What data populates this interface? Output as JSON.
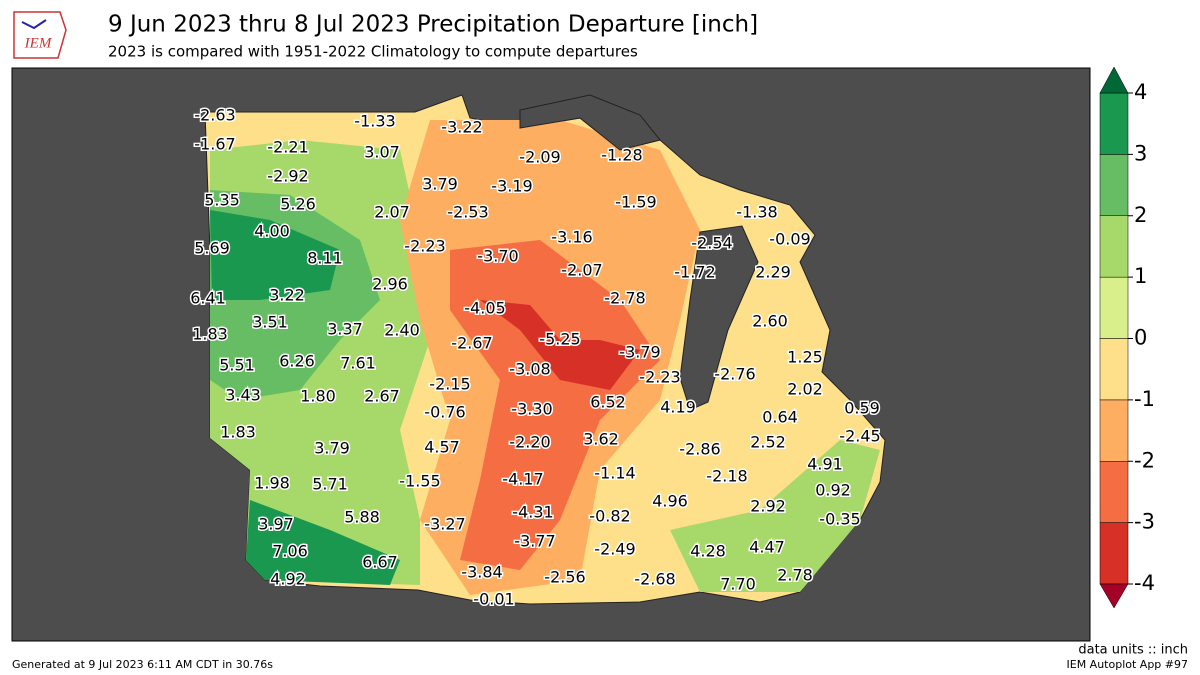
{
  "header": {
    "logo": "IEM",
    "title": "9 Jun 2023 thru 8 Jul 2023 Precipitation Departure [inch]",
    "subtitle": "2023 is compared with 1951-2022 Climatology to compute departures"
  },
  "map": {
    "station_labels": [
      "-2.63",
      "-1.33",
      "-3.22",
      "-1.67",
      "-2.21",
      "3.07",
      "-2.09",
      "-1.28",
      "-2.92",
      "3.79",
      "-3.19",
      "5.35",
      "5.26",
      "2.07",
      "-2.53",
      "-1.59",
      "-1.38",
      "4.00",
      "-3.16",
      "-2.54",
      "-0.09",
      "5.69",
      "-2.23",
      "8.11",
      "-3.70",
      "-2.07",
      "-1.72",
      "2.29",
      "2.96",
      "6.41",
      "3.22",
      "-2.78",
      "-4.05",
      "2.60",
      "3.51",
      "3.37",
      "2.40",
      "1.83",
      "-2.67",
      "-5.25",
      "-3.79",
      "1.25",
      "5.51",
      "6.26",
      "7.61",
      "-3.08",
      "-2.23",
      "-2.76",
      "2.02",
      "-2.15",
      "3.43",
      "1.80",
      "2.67",
      "-0.76",
      "-3.30",
      "6.52",
      "4.19",
      "0.64",
      "0.59",
      "1.83",
      "-2.45",
      "4.57",
      "-2.20",
      "3.62",
      "-2.86",
      "2.52",
      "3.79",
      "-1.14",
      "-2.18",
      "4.91",
      "1.98",
      "5.71",
      "-1.55",
      "-4.17",
      "0.92",
      "4.96",
      "2.92",
      "3.97",
      "5.88",
      "-3.27",
      "-4.31",
      "-0.82",
      "-0.35",
      "7.06",
      "-3.77",
      "-2.49",
      "4.28",
      "4.47",
      "6.67",
      "4.92",
      "-3.84",
      "-2.56",
      "-2.68",
      "7.70",
      "2.78",
      "-0.01"
    ]
  },
  "colorbar": {
    "ticks": [
      -4,
      -3,
      -2,
      -1,
      0,
      1,
      2,
      3,
      4
    ],
    "colors": [
      "#d73027",
      "#f46d43",
      "#fdae61",
      "#fee08b",
      "#d9ef8b",
      "#a6d96a",
      "#66bd63",
      "#1a9850"
    ],
    "under_color": "#a50026",
    "over_color": "#006837"
  },
  "footer": {
    "units": "data units :: inch",
    "generated": "Generated at 9 Jul 2023 6:11 AM CDT in 30.76s",
    "app": "IEM Autoplot App #97"
  }
}
